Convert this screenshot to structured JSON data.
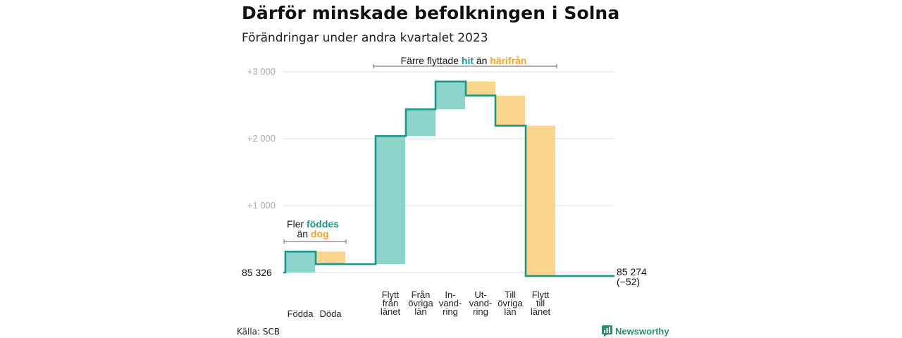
{
  "title": "Därför minskade befolkningen i Solna",
  "subtitle": "Förändringar under andra kvartalet 2023",
  "source": "Källa: SCB",
  "brand": "Newsworthy",
  "colors": {
    "increase": "#8dd4cb",
    "decrease": "#fad58d",
    "line": "#1e958a",
    "grid": "#dddddd",
    "teal_text": "#1e958a",
    "orange_text": "#f0a42b"
  },
  "chart_data": {
    "type": "waterfall",
    "start_value": 85326,
    "start_label": "85  326",
    "end_value": 85274,
    "end_label": "85 274",
    "end_change_label": "(−52)",
    "ylim": [
      -150,
      3200
    ],
    "yticks": [
      {
        "value": 3000,
        "label": "+3  000"
      },
      {
        "value": 2000,
        "label": "+2  000"
      },
      {
        "value": 1000,
        "label": "+1  000"
      }
    ],
    "steps": [
      {
        "label": [
          "Födda"
        ],
        "change": 313,
        "kind": "increase"
      },
      {
        "label": [
          "Döda"
        ],
        "change": -188,
        "kind": "decrease"
      },
      {
        "label": [
          "Flytt",
          "från",
          "länet"
        ],
        "change": 1915,
        "kind": "increase"
      },
      {
        "label": [
          "Från",
          "övriga",
          "län"
        ],
        "change": 400,
        "kind": "increase"
      },
      {
        "label": [
          "In-",
          "vand-",
          "ring"
        ],
        "change": 415,
        "kind": "increase"
      },
      {
        "label": [
          "Ut-",
          "vand-",
          "ring"
        ],
        "change": -210,
        "kind": "decrease"
      },
      {
        "label": [
          "Till",
          "övriga",
          "län"
        ],
        "change": -450,
        "kind": "decrease"
      },
      {
        "label": [
          "Flytt",
          "till",
          "länet"
        ],
        "change": -2247,
        "kind": "decrease"
      }
    ],
    "annotations": [
      {
        "parts": [
          {
            "text": "Fler ",
            "style": "plain"
          },
          {
            "text": "föddes",
            "style": "teal"
          }
        ]
      },
      {
        "parts": [
          {
            "text": "än ",
            "style": "plain"
          },
          {
            "text": "dog",
            "style": "orange"
          }
        ]
      },
      {
        "parts": [
          {
            "text": "Färre flyttade ",
            "style": "plain"
          },
          {
            "text": "hit",
            "style": "teal"
          },
          {
            "text": "  än ",
            "style": "plain"
          },
          {
            "text": "härifrån",
            "style": "orange"
          }
        ]
      }
    ]
  }
}
